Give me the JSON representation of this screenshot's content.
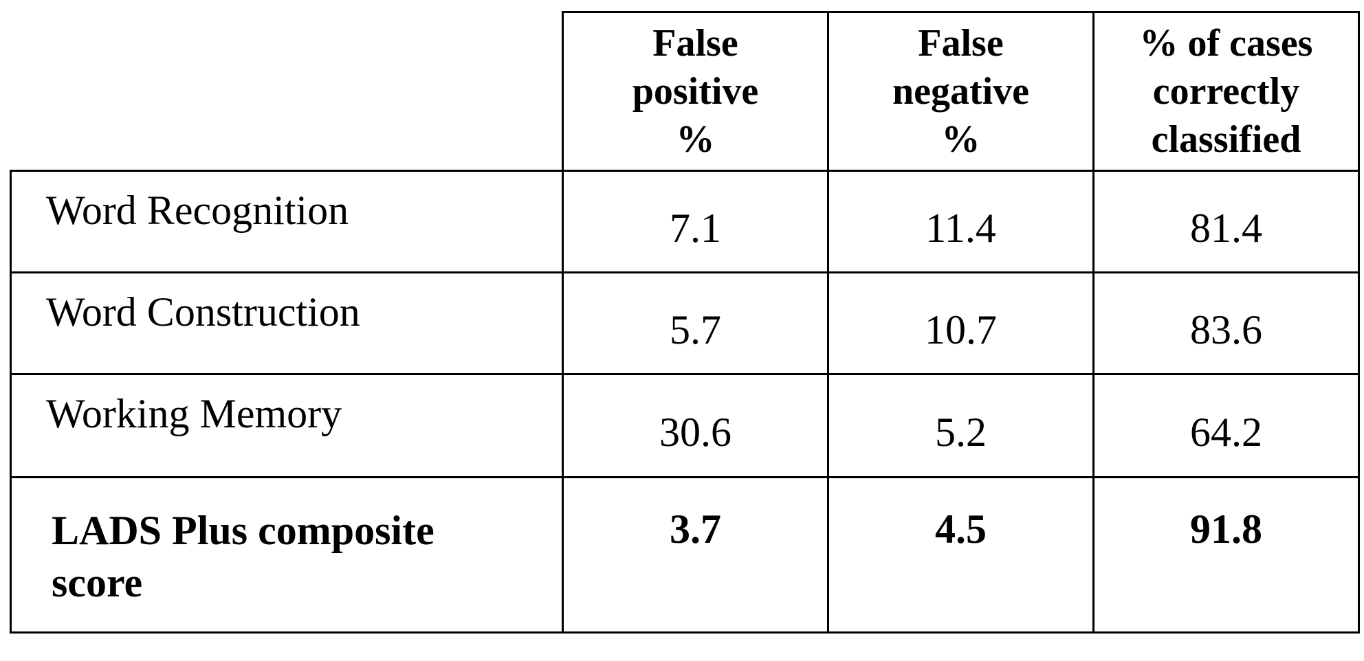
{
  "table": {
    "columns": [
      [
        "False",
        "positive",
        "%"
      ],
      [
        "False",
        "negative",
        "%"
      ],
      [
        "% of cases",
        "correctly",
        "classified"
      ]
    ],
    "rows": [
      {
        "label": "Word Recognition",
        "values": [
          "7.1",
          "11.4",
          "81.4"
        ],
        "bold": false
      },
      {
        "label": "Word Construction",
        "values": [
          "5.7",
          "10.7",
          "83.6"
        ],
        "bold": false
      },
      {
        "label": "Working Memory",
        "values": [
          "30.6",
          "5.2",
          "64.2"
        ],
        "bold": false
      },
      {
        "label_lines": [
          "LADS Plus composite",
          "score"
        ],
        "values": [
          "3.7",
          "4.5",
          "91.8"
        ],
        "bold": true
      }
    ]
  }
}
